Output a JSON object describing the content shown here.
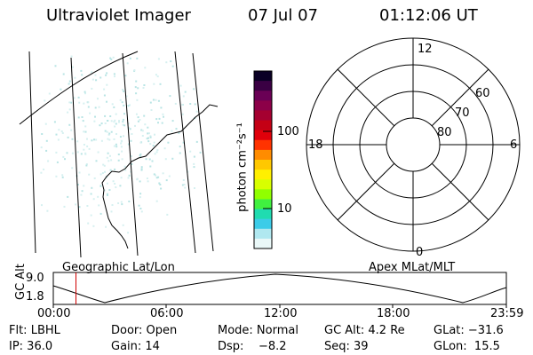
{
  "header": {
    "title": "Ultraviolet Imager",
    "date": "07 Jul 07",
    "time": "01:12:06 UT"
  },
  "colorbar": {
    "unit_label": "photon cm⁻²s⁻¹",
    "ticks": [
      "100",
      "10"
    ],
    "colors": [
      "#0a0025",
      "#3a0043",
      "#6a0055",
      "#8c0048",
      "#a50030",
      "#c40015",
      "#e0000a",
      "#ff3300",
      "#ff8c00",
      "#ffc800",
      "#fff000",
      "#d8ff00",
      "#90ff00",
      "#40f040",
      "#20dcb0",
      "#3ccce8",
      "#b0e8f0",
      "#eaf8f8"
    ]
  },
  "polar": {
    "mlt_labels": [
      "12",
      "18",
      "6",
      "0"
    ],
    "lat_labels": [
      "60",
      "70",
      "80"
    ]
  },
  "timeline": {
    "left_label": "Geographic Lat/Lon",
    "right_label": "Apex MLat/MLT",
    "axis_label": "GC Alt",
    "y_labels": [
      "9.0",
      "1.8"
    ],
    "x_labels": [
      "00:00",
      "06:00",
      "12:00",
      "18:00",
      "23:59"
    ],
    "current_time_fraction": 0.05,
    "marker_color": "#d00000"
  },
  "info": {
    "row1": [
      "Flt: LBHL",
      "Door: Open",
      "Mode: Normal",
      "GC Alt: 4.2 Re",
      "GLat: −31.6"
    ],
    "row2": [
      "IP: 36.0",
      "Gain: 14",
      "Dsp:    −8.2",
      "Seq: 39",
      "GLon:  15.5"
    ]
  }
}
